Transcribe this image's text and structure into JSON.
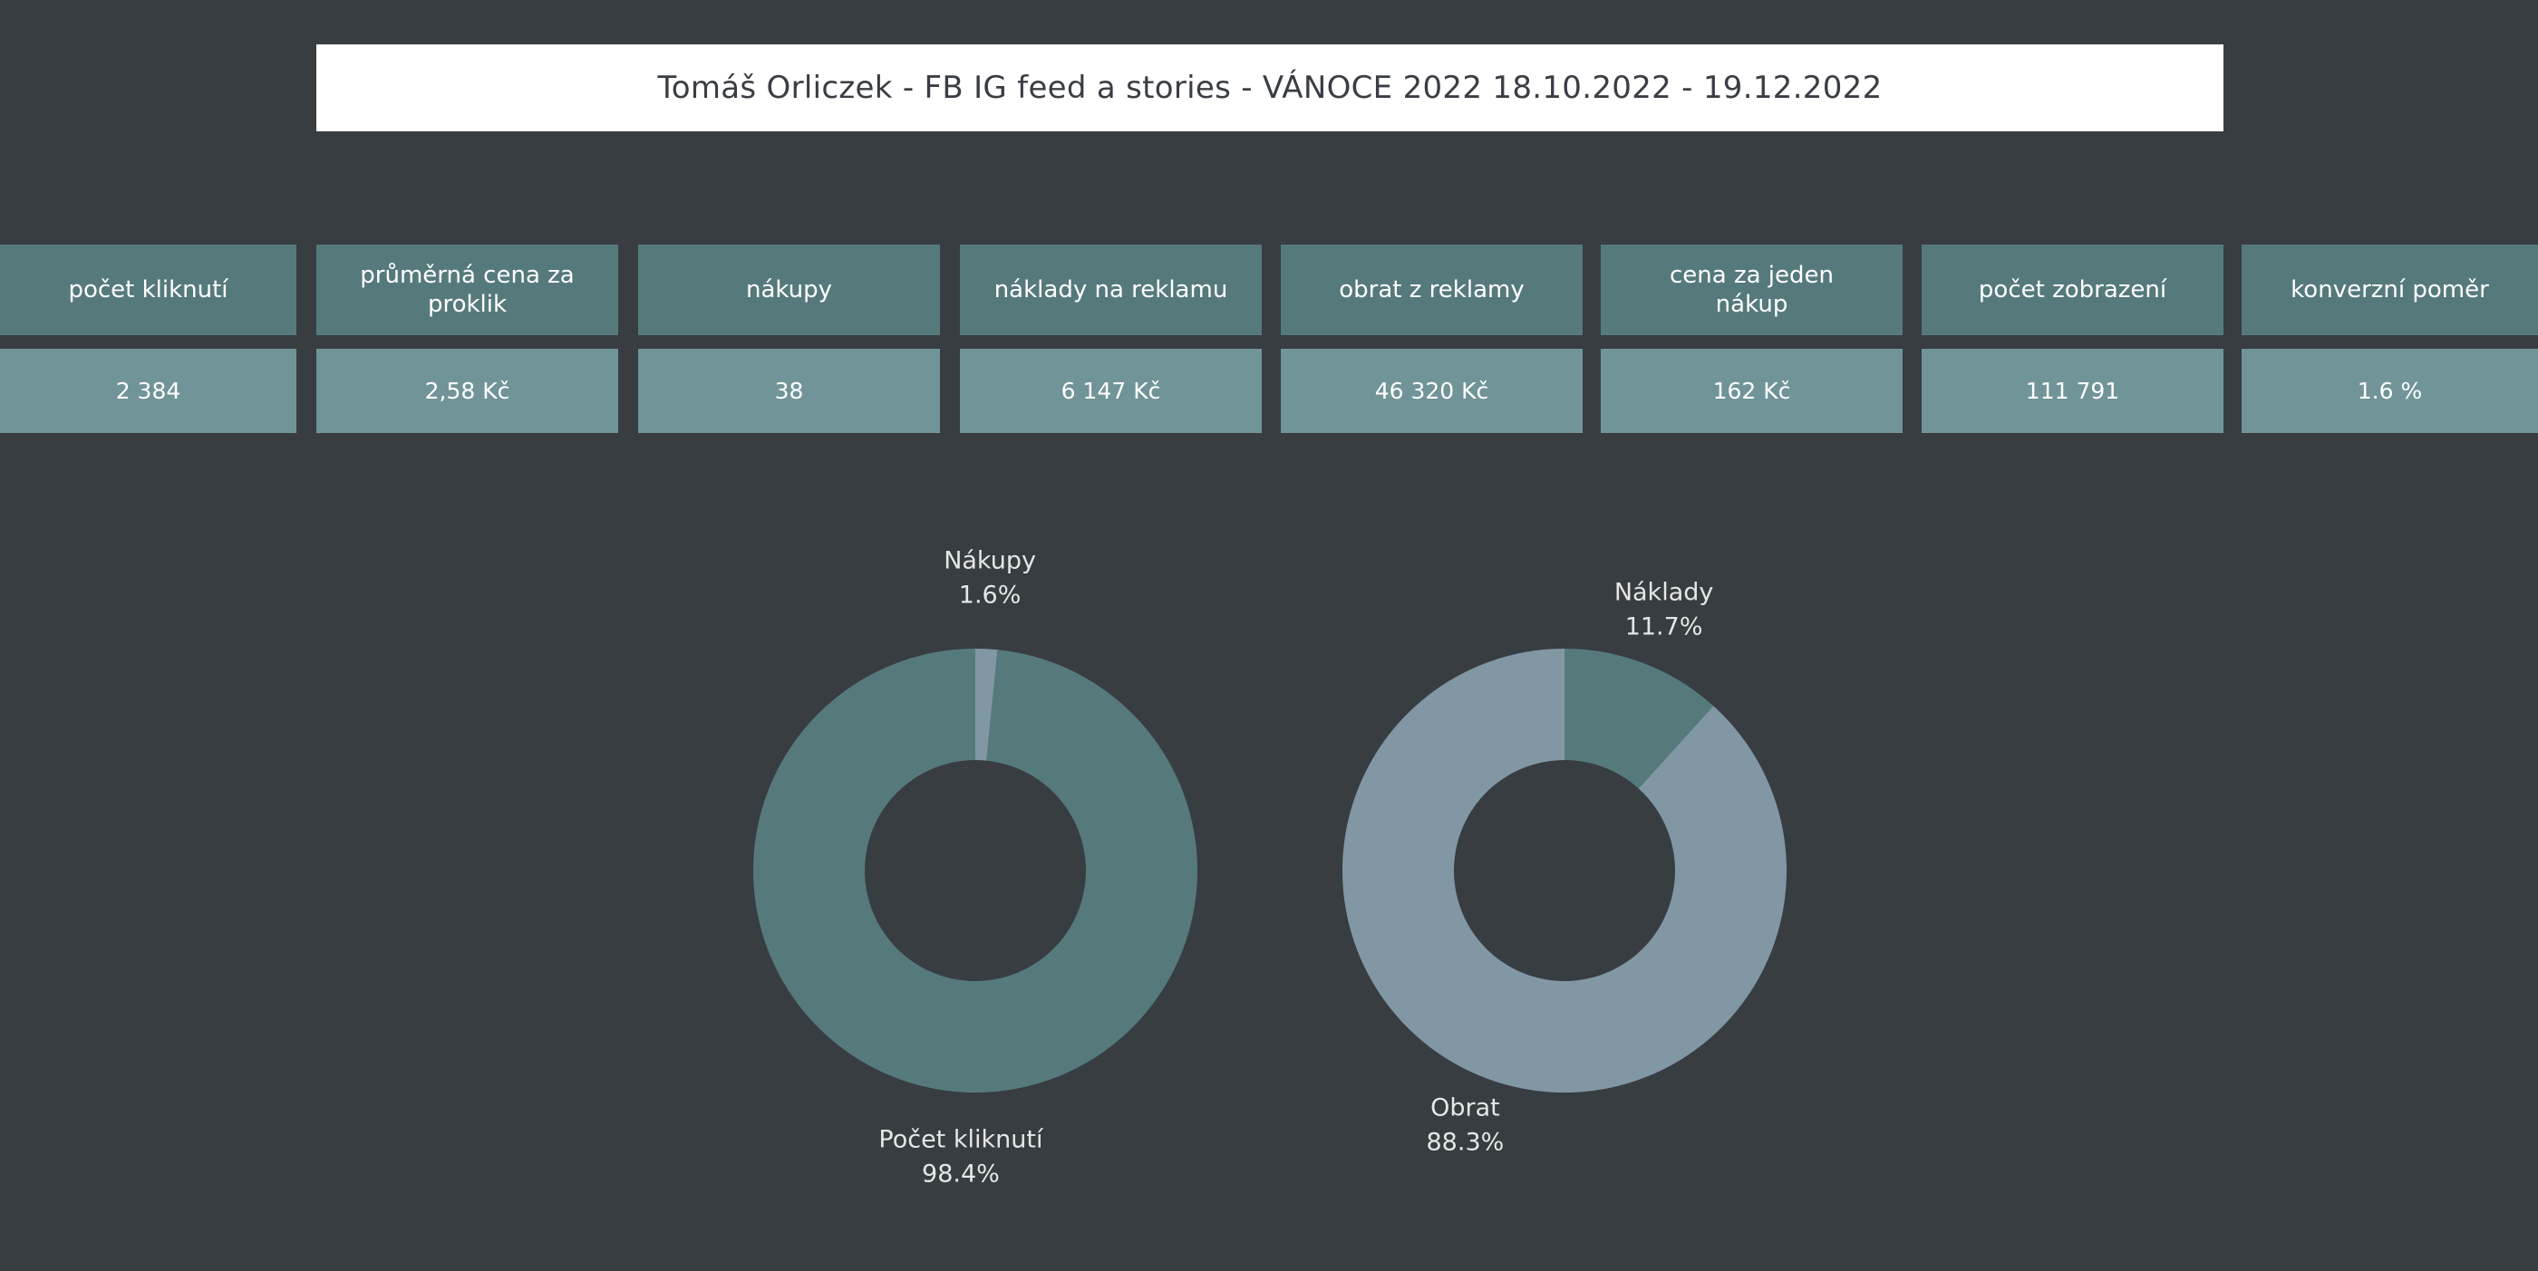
{
  "title": "Tomáš Orliczek - FB IG feed a stories - VÁNOCE 2022 18.10.2022 - 19.12.2022",
  "kpis": [
    {
      "label": "počet kliknutí",
      "value": "2 384"
    },
    {
      "label": "průměrná cena za proklik",
      "value": "2,58 Kč"
    },
    {
      "label": "nákupy",
      "value": "38"
    },
    {
      "label": "náklady na reklamu",
      "value": "6 147 Kč"
    },
    {
      "label": "obrat z reklamy",
      "value": "46 320 Kč"
    },
    {
      "label": "cena za jeden nákup",
      "value": "162 Kč"
    },
    {
      "label": "počet zobrazení",
      "value": "111 791"
    },
    {
      "label": "konverzní poměr",
      "value": "1.6 %"
    }
  ],
  "colors": {
    "background": "#383d41",
    "header_cell": "#567a7c",
    "value_cell": "#709497",
    "slice_dark": "#567a7c",
    "slice_light": "#8297a4"
  },
  "chart_data": [
    {
      "type": "pie",
      "donut": true,
      "slices": [
        {
          "label": "Nákupy",
          "percent_label": "1.6%",
          "value": 1.6,
          "color": "#8297a4"
        },
        {
          "label": "Počet kliknutí",
          "percent_label": "98.4%",
          "value": 98.4,
          "color": "#567a7c"
        }
      ]
    },
    {
      "type": "pie",
      "donut": true,
      "slices": [
        {
          "label": "Náklady",
          "percent_label": "11.7%",
          "value": 11.7,
          "color": "#567a7c"
        },
        {
          "label": "Obrat",
          "percent_label": "88.3%",
          "value": 88.3,
          "color": "#8297a4"
        }
      ]
    }
  ]
}
